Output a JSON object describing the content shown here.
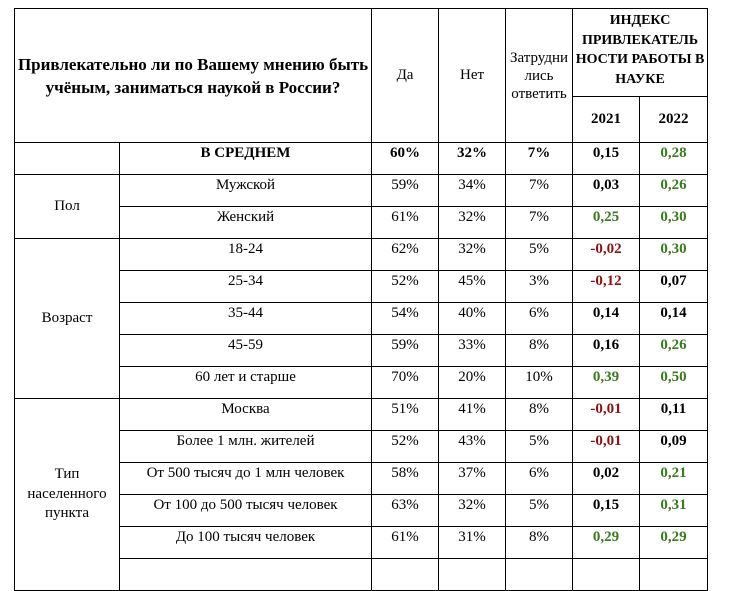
{
  "header": {
    "question": "Привлекательно ли по Вашему мнению быть учёным, заниматься наукой в России?",
    "yes": "Да",
    "no": "Нет",
    "hard": "Затрудни\nлись\nответить",
    "index_title": "ИНДЕКС ПРИВЛЕКАТЕЛЬ НОСТИ РАБОТЫ В НАУКЕ",
    "year1": "2021",
    "year2": "2022"
  },
  "colors": {
    "positive": "#3a7a1f",
    "negative": "#8b1111",
    "neutral": "#000000"
  },
  "average": {
    "label": "В СРЕДНЕМ",
    "yes": "60%",
    "no": "32%",
    "hard": "7%",
    "i2021": "0,15",
    "i2022": "0,28"
  },
  "groups": {
    "gender": "Пол",
    "age": "Возраст",
    "settlement": "Тип населенного пункта"
  },
  "rows": [
    {
      "label": "Мужской",
      "yes": "59%",
      "no": "34%",
      "hard": "7%",
      "i2021": "0,03",
      "i2022": "0,26"
    },
    {
      "label": "Женский",
      "yes": "61%",
      "no": "32%",
      "hard": "7%",
      "i2021": "0,25",
      "i2022": "0,30"
    },
    {
      "label": "18-24",
      "yes": "62%",
      "no": "32%",
      "hard": "5%",
      "i2021": "-0,02",
      "i2022": "0,30"
    },
    {
      "label": "25-34",
      "yes": "52%",
      "no": "45%",
      "hard": "3%",
      "i2021": "-0,12",
      "i2022": "0,07"
    },
    {
      "label": "35-44",
      "yes": "54%",
      "no": "40%",
      "hard": "6%",
      "i2021": "0,14",
      "i2022": "0,14"
    },
    {
      "label": "45-59",
      "yes": "59%",
      "no": "33%",
      "hard": "8%",
      "i2021": "0,16",
      "i2022": "0,26"
    },
    {
      "label": "60 лет и старше",
      "yes": "70%",
      "no": "20%",
      "hard": "10%",
      "i2021": "0,39",
      "i2022": "0,50"
    },
    {
      "label": "Москва",
      "yes": "51%",
      "no": "41%",
      "hard": "8%",
      "i2021": "-0,01",
      "i2022": "0,11"
    },
    {
      "label": "Более 1 млн. жителей",
      "yes": "52%",
      "no": "43%",
      "hard": "5%",
      "i2021": "-0,01",
      "i2022": "0,09"
    },
    {
      "label": "От 500 тысяч до 1 млн человек",
      "yes": "58%",
      "no": "37%",
      "hard": "6%",
      "i2021": "0,02",
      "i2022": "0,21"
    },
    {
      "label": "От 100 до 500 тысяч человек",
      "yes": "63%",
      "no": "32%",
      "hard": "5%",
      "i2021": "0,15",
      "i2022": "0,31"
    },
    {
      "label": "До 100 тысяч человек",
      "yes": "61%",
      "no": "31%",
      "hard": "8%",
      "i2021": "0,29",
      "i2022": "0,29"
    }
  ]
}
